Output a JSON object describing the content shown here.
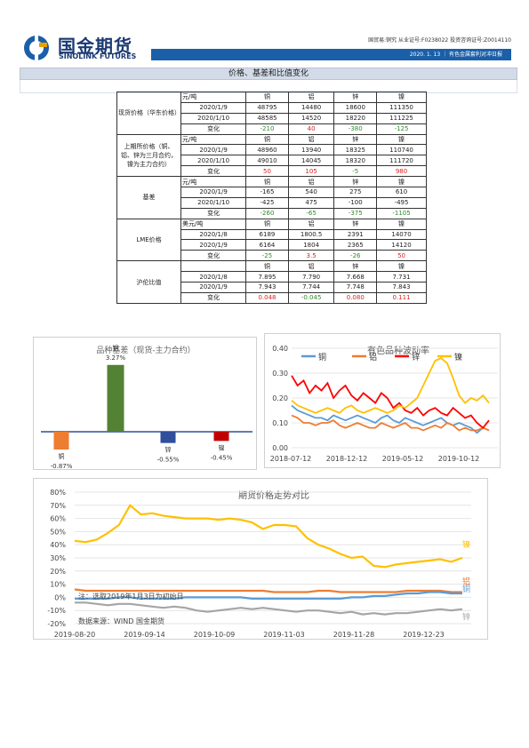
{
  "header": {
    "logo_cn": "国金期货",
    "logo_en": "SINOLINK FUTURES",
    "license": "国贸易:铜究  从业证号:F0238022  投资咨询证号:Z0014110",
    "date_report": "2020. 1. 13  ｜ 有色金属套利对冲日报"
  },
  "section": {
    "title": "价格、基差和比值变化"
  },
  "table": {
    "groups": [
      {
        "label": "现货价格（华东价格）",
        "rows": [
          [
            "元/吨",
            "铜",
            "铝",
            "锌",
            "镍"
          ],
          [
            "2020/1/9",
            "48795",
            "14480",
            "18600",
            "111350"
          ],
          [
            "2020/1/10",
            "48585",
            "14520",
            "18220",
            "111225"
          ],
          [
            "变化",
            "-210",
            "40",
            "-380",
            "-125"
          ]
        ]
      },
      {
        "label": "上期所价格（铜、铝、锌为三月合约，镍为主力合约）",
        "rows": [
          [
            "元/吨",
            "铜",
            "铝",
            "锌",
            "镍"
          ],
          [
            "2020/1/9",
            "48960",
            "13940",
            "18325",
            "110740"
          ],
          [
            "2020/1/10",
            "49010",
            "14045",
            "18320",
            "111720"
          ],
          [
            "变化",
            "50",
            "105",
            "-5",
            "980"
          ]
        ]
      },
      {
        "label": "基差",
        "rows": [
          [
            "元/吨",
            "铜",
            "铝",
            "锌",
            "镍"
          ],
          [
            "2020/1/9",
            "-165",
            "540",
            "275",
            "610"
          ],
          [
            "2020/1/10",
            "-425",
            "475",
            "-100",
            "-495"
          ],
          [
            "变化",
            "-260",
            "-65",
            "-375",
            "-1105"
          ]
        ]
      },
      {
        "label": "LME价格",
        "rows": [
          [
            "美元/吨",
            "铜",
            "铝",
            "锌",
            "镍"
          ],
          [
            "2020/1/8",
            "6189",
            "1800.5",
            "2391",
            "14070"
          ],
          [
            "2020/1/9",
            "6164",
            "1804",
            "2365",
            "14120"
          ],
          [
            "变化",
            "-25",
            "3.5",
            "-26",
            "50"
          ]
        ]
      },
      {
        "label": "沪伦比值",
        "rows": [
          [
            "",
            "铜",
            "铝",
            "锌",
            "镍"
          ],
          [
            "2020/1/8",
            "7.895",
            "7.790",
            "7.668",
            "7.731"
          ],
          [
            "2020/1/9",
            "7.943",
            "7.744",
            "7.748",
            "7.843"
          ],
          [
            "变化",
            "0.048",
            "-0.045",
            "0.080",
            "0.111"
          ]
        ]
      }
    ]
  },
  "chart_data": [
    {
      "type": "bar",
      "title": "品种基差（现货-主力合约）",
      "categories": [
        "铜",
        "铝",
        "锌",
        "镍"
      ],
      "values": [
        -0.87,
        3.27,
        -0.55,
        -0.45
      ],
      "value_labels": [
        "-0.87%",
        "3.27%",
        "-0.55%",
        "-0.45%"
      ],
      "colors": [
        "#ed7d31",
        "#548235",
        "#2f4e9c",
        "#c00000"
      ]
    },
    {
      "type": "line",
      "title": "有色品种波动率",
      "legend": [
        "铜",
        "铝",
        "锌",
        "镍"
      ],
      "colors": [
        "#5b9bd5",
        "#ed7d31",
        "#ff0000",
        "#ffc000"
      ],
      "x_ticks": [
        "2018-07-12",
        "2018-12-12",
        "2019-05-12",
        "2019-10-12"
      ],
      "y_ticks": [
        "0.00",
        "0.10",
        "0.20",
        "0.30",
        "0.40"
      ],
      "ylim": [
        0,
        0.4
      ],
      "series": [
        {
          "name": "铜",
          "values": [
            0.17,
            0.15,
            0.14,
            0.13,
            0.12,
            0.12,
            0.11,
            0.13,
            0.12,
            0.11,
            0.12,
            0.13,
            0.12,
            0.11,
            0.1,
            0.12,
            0.13,
            0.11,
            0.1,
            0.12,
            0.11,
            0.1,
            0.09,
            0.1,
            0.11,
            0.12,
            0.1,
            0.09,
            0.1,
            0.09,
            0.08,
            0.06,
            0.08,
            0.07
          ]
        },
        {
          "name": "铝",
          "values": [
            0.13,
            0.12,
            0.1,
            0.1,
            0.09,
            0.1,
            0.1,
            0.11,
            0.09,
            0.08,
            0.09,
            0.1,
            0.09,
            0.08,
            0.08,
            0.1,
            0.09,
            0.08,
            0.09,
            0.1,
            0.08,
            0.08,
            0.07,
            0.08,
            0.09,
            0.08,
            0.1,
            0.09,
            0.07,
            0.08,
            0.07,
            0.07,
            0.08,
            0.07
          ]
        },
        {
          "name": "锌",
          "values": [
            0.29,
            0.25,
            0.27,
            0.22,
            0.25,
            0.23,
            0.26,
            0.2,
            0.23,
            0.25,
            0.21,
            0.19,
            0.22,
            0.2,
            0.18,
            0.22,
            0.2,
            0.16,
            0.18,
            0.15,
            0.14,
            0.16,
            0.13,
            0.15,
            0.16,
            0.14,
            0.13,
            0.16,
            0.14,
            0.12,
            0.13,
            0.1,
            0.08,
            0.11
          ]
        },
        {
          "name": "镍",
          "values": [
            0.19,
            0.17,
            0.16,
            0.15,
            0.14,
            0.15,
            0.16,
            0.15,
            0.14,
            0.16,
            0.17,
            0.15,
            0.14,
            0.15,
            0.16,
            0.15,
            0.14,
            0.15,
            0.17,
            0.16,
            0.18,
            0.2,
            0.25,
            0.3,
            0.35,
            0.36,
            0.34,
            0.28,
            0.21,
            0.18,
            0.2,
            0.19,
            0.21,
            0.18
          ]
        }
      ]
    },
    {
      "type": "line",
      "title": "期货价格走势对比",
      "x_ticks": [
        "2019-08-20",
        "2019-09-14",
        "2019-10-09",
        "2019-11-03",
        "2019-11-28",
        "2019-12-23"
      ],
      "y_ticks": [
        "80%",
        "70%",
        "60%",
        "50%",
        "40%",
        "30%",
        "20%",
        "10%",
        "0%",
        "-10%",
        "-20%"
      ],
      "ylim": [
        -20,
        80
      ],
      "note": "注：选取2019年1月3日为初始日",
      "source": "数据来源：WIND 国金期货",
      "series": [
        {
          "name": "镍",
          "color": "#ffc000",
          "values": [
            43,
            42,
            44,
            49,
            55,
            70,
            63,
            64,
            62,
            61,
            60,
            60,
            60,
            59,
            60,
            59,
            57,
            52,
            55,
            55,
            54,
            45,
            40,
            37,
            33,
            30,
            31,
            24,
            23,
            25,
            26,
            27,
            28,
            29,
            27,
            30
          ]
        },
        {
          "name": "铝",
          "color": "#ed7d31",
          "values": [
            6,
            5,
            5,
            5,
            5,
            5,
            5,
            5,
            5,
            5,
            5,
            5,
            5,
            5,
            5,
            5,
            5,
            5,
            4,
            4,
            4,
            4,
            5,
            5,
            4,
            4,
            4,
            4,
            4,
            4,
            5,
            5,
            5,
            5,
            4,
            4
          ]
        },
        {
          "name": "铜",
          "color": "#5b9bd5",
          "values": [
            -1,
            -1,
            -1,
            -1,
            0,
            0,
            -1,
            -1,
            -1,
            -1,
            0,
            0,
            0,
            0,
            0,
            0,
            -1,
            -1,
            -1,
            -1,
            -1,
            -1,
            -1,
            -1,
            -1,
            0,
            0,
            1,
            1,
            2,
            3,
            3,
            4,
            4,
            3,
            3
          ]
        },
        {
          "name": "锌",
          "color": "#a5a5a5",
          "values": [
            -4,
            -4,
            -5,
            -6,
            -5,
            -5,
            -6,
            -7,
            -8,
            -7,
            -8,
            -10,
            -11,
            -10,
            -9,
            -8,
            -9,
            -8,
            -9,
            -10,
            -11,
            -10,
            -10,
            -11,
            -12,
            -11,
            -13,
            -12,
            -13,
            -12,
            -12,
            -11,
            -10,
            -9,
            -10,
            -9
          ]
        }
      ]
    }
  ]
}
